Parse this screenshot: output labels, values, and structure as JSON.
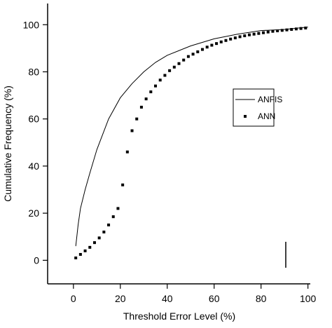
{
  "chart_data": {
    "type": "line",
    "xlabel": "Threshold Error Level (%)",
    "ylabel": "Cumulative Frequency (%)",
    "xlim": [
      -11,
      101
    ],
    "ylim": [
      -10,
      109
    ],
    "xticks": [
      0,
      20,
      40,
      60,
      80,
      100
    ],
    "yticks": [
      0,
      20,
      40,
      60,
      80,
      100
    ],
    "series": [
      {
        "name": "ANFIS",
        "color": "#000000",
        "style": "line",
        "x": [
          1,
          2,
          3,
          5,
          7,
          10,
          15,
          20,
          25,
          30,
          35,
          40,
          50,
          60,
          70,
          80,
          90,
          100
        ],
        "values": [
          6,
          15,
          22,
          30,
          37,
          47,
          60,
          69,
          75,
          80,
          84,
          87,
          91,
          94,
          96,
          97.5,
          98,
          99
        ]
      },
      {
        "name": "ANN",
        "color": "#000000",
        "style": "dots",
        "x": [
          1,
          3,
          5,
          7,
          9,
          11,
          13,
          15,
          17,
          19,
          21,
          23,
          25,
          27,
          29,
          31,
          33,
          35,
          37,
          39,
          41,
          43,
          45,
          47,
          49,
          51,
          53,
          55,
          57,
          59,
          61,
          63,
          65,
          67,
          69,
          71,
          73,
          75,
          77,
          79,
          81,
          83,
          85,
          87,
          89,
          91,
          93,
          95,
          97,
          99
        ],
        "values": [
          1,
          2.5,
          4,
          5.5,
          7.5,
          9.5,
          12,
          15,
          18.5,
          22,
          32,
          46,
          55,
          60,
          65,
          68.5,
          71.5,
          74,
          76.5,
          78.5,
          80.5,
          82,
          83.5,
          85,
          86.5,
          87.5,
          88.5,
          89.5,
          90.5,
          91.3,
          92,
          92.7,
          93.3,
          93.9,
          94.4,
          94.9,
          95.3,
          95.7,
          96,
          96.3,
          96.6,
          96.9,
          97.2,
          97.4,
          97.6,
          97.8,
          98,
          98.2,
          98.4,
          98.6
        ]
      }
    ]
  }
}
